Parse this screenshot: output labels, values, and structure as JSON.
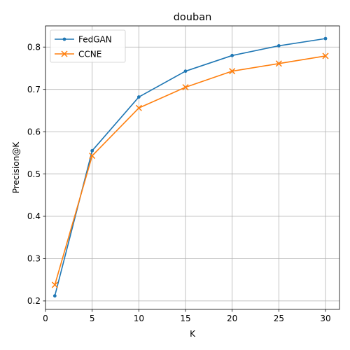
{
  "chart_data": {
    "type": "line",
    "title": "douban",
    "xlabel": "K",
    "ylabel": "Precision@K",
    "x": [
      1,
      5,
      10,
      15,
      20,
      25,
      30
    ],
    "xlim": [
      0,
      31.5
    ],
    "ylim": [
      0.18,
      0.85
    ],
    "xticks": [
      0,
      5,
      10,
      15,
      20,
      25,
      30
    ],
    "yticks": [
      0.2,
      0.3,
      0.4,
      0.5,
      0.6,
      0.7,
      0.8
    ],
    "xtick_labels": [
      "0",
      "5",
      "10",
      "15",
      "20",
      "25",
      "30"
    ],
    "ytick_labels": [
      "0.2",
      "0.3",
      "0.4",
      "0.5",
      "0.6",
      "0.7",
      "0.8"
    ],
    "grid": true,
    "legend_position": "top-left",
    "series": [
      {
        "name": "FedGAN",
        "color": "#1f77b4",
        "marker": "dot",
        "values": [
          0.212,
          0.555,
          0.682,
          0.743,
          0.78,
          0.803,
          0.82
        ]
      },
      {
        "name": "CCNE",
        "color": "#ff7f0e",
        "marker": "x",
        "values": [
          0.238,
          0.543,
          0.656,
          0.705,
          0.743,
          0.761,
          0.779
        ]
      }
    ]
  }
}
